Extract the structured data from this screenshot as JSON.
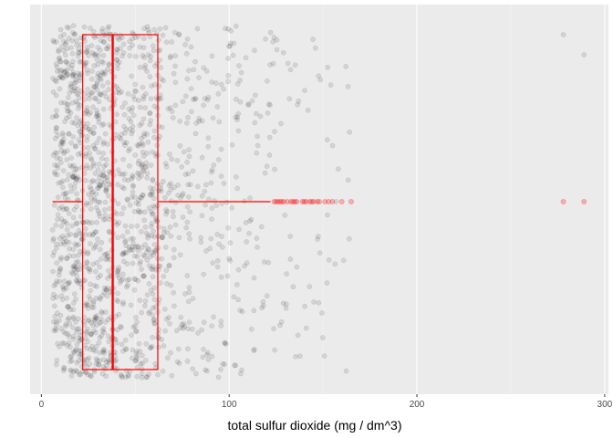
{
  "chart_data": {
    "type": "scatter",
    "overlay": "boxplot",
    "title": "",
    "xlabel": "total sulfur dioxide (mg / dm^3)",
    "ylabel": "",
    "xlim": [
      -6,
      302
    ],
    "x_ticks": [
      0,
      100,
      200,
      300
    ],
    "x_tick_labels": [
      "0",
      "100",
      "200",
      "300"
    ],
    "grid": true,
    "jitter": {
      "n_points": 1599,
      "seed": 42,
      "sample_values": [
        6,
        11,
        14,
        15,
        18,
        21,
        24,
        28,
        31,
        34,
        38,
        42,
        46,
        52,
        59,
        67,
        78,
        90,
        102,
        115,
        128,
        140,
        152,
        165
      ]
    },
    "boxplot": {
      "min": 6,
      "q1": 22,
      "median": 38,
      "q3": 62,
      "whisker_high": 122,
      "outliers": [
        124,
        125,
        126,
        127,
        128,
        129,
        131,
        133,
        134,
        135,
        136,
        139,
        140,
        141,
        143,
        144,
        145,
        147,
        148,
        151,
        153,
        155,
        160,
        165,
        278,
        289
      ]
    },
    "colors": {
      "panel": "#ebebeb",
      "grid_major": "#ffffff",
      "grid_minor": "#f5f5f5",
      "points": "#000000",
      "box": "#ff0000"
    }
  }
}
